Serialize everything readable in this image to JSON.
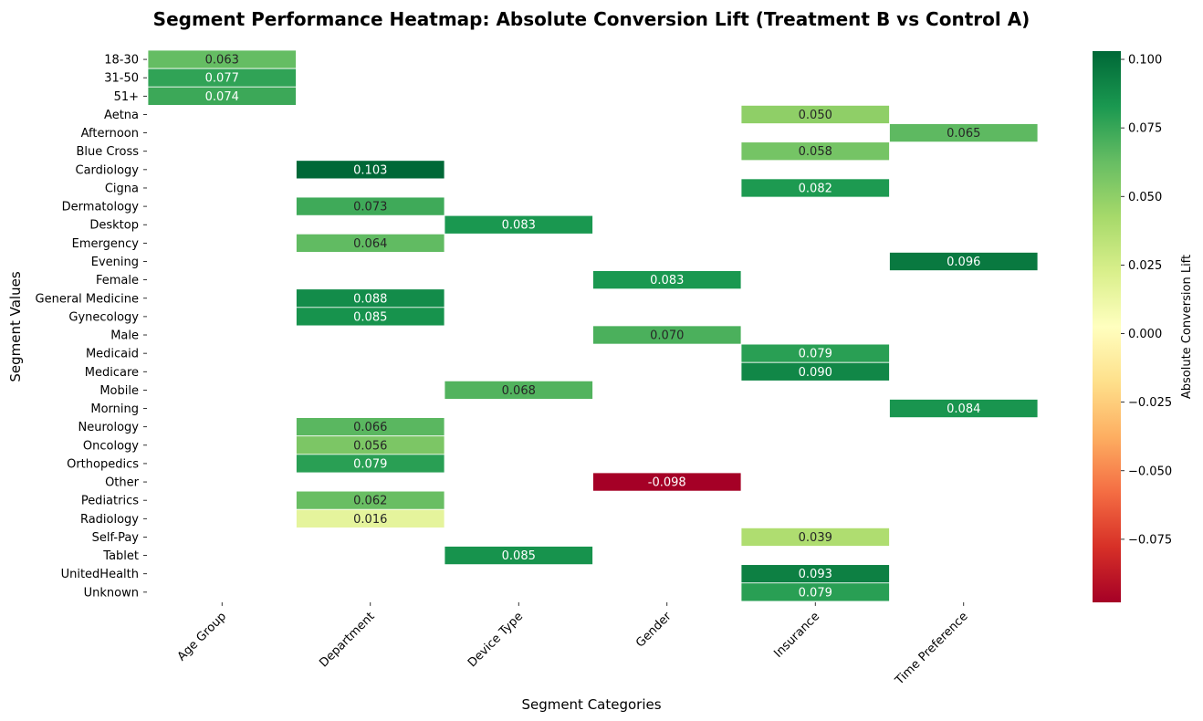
{
  "chart_data": {
    "type": "heatmap",
    "title": "Segment Performance Heatmap: Absolute Conversion Lift (Treatment B vs Control A)",
    "xlabel": "Segment Categories",
    "ylabel": "Segment Values",
    "colorbar_label": "Absolute Conversion Lift",
    "colormap": "RdYlGn",
    "vmin": -0.098,
    "vmax": 0.103,
    "colorbar_ticks": [
      "0.100",
      "0.075",
      "0.050",
      "0.025",
      "0.000",
      "−0.025",
      "−0.050",
      "−0.075"
    ],
    "colorbar_tick_values": [
      0.1,
      0.075,
      0.05,
      0.025,
      0.0,
      -0.025,
      -0.05,
      -0.075
    ],
    "columns": [
      "Age Group",
      "Department",
      "Device Type",
      "Gender",
      "Insurance",
      "Time Preference"
    ],
    "rows": [
      "18-30",
      "31-50",
      "51+",
      "Aetna",
      "Afternoon",
      "Blue Cross",
      "Cardiology",
      "Cigna",
      "Dermatology",
      "Desktop",
      "Emergency",
      "Evening",
      "Female",
      "General Medicine",
      "Gynecology",
      "Male",
      "Medicaid",
      "Medicare",
      "Mobile",
      "Morning",
      "Neurology",
      "Oncology",
      "Orthopedics",
      "Other",
      "Pediatrics",
      "Radiology",
      "Self-Pay",
      "Tablet",
      "UnitedHealth",
      "Unknown"
    ],
    "cells": [
      {
        "row": "18-30",
        "col": "Age Group",
        "value": 0.063,
        "label": "0.063"
      },
      {
        "row": "31-50",
        "col": "Age Group",
        "value": 0.077,
        "label": "0.077"
      },
      {
        "row": "51+",
        "col": "Age Group",
        "value": 0.074,
        "label": "0.074"
      },
      {
        "row": "Aetna",
        "col": "Insurance",
        "value": 0.05,
        "label": "0.050"
      },
      {
        "row": "Afternoon",
        "col": "Time Preference",
        "value": 0.065,
        "label": "0.065"
      },
      {
        "row": "Blue Cross",
        "col": "Insurance",
        "value": 0.058,
        "label": "0.058"
      },
      {
        "row": "Cardiology",
        "col": "Department",
        "value": 0.103,
        "label": "0.103"
      },
      {
        "row": "Cigna",
        "col": "Insurance",
        "value": 0.082,
        "label": "0.082"
      },
      {
        "row": "Dermatology",
        "col": "Department",
        "value": 0.073,
        "label": "0.073"
      },
      {
        "row": "Desktop",
        "col": "Device Type",
        "value": 0.083,
        "label": "0.083"
      },
      {
        "row": "Emergency",
        "col": "Department",
        "value": 0.064,
        "label": "0.064"
      },
      {
        "row": "Evening",
        "col": "Time Preference",
        "value": 0.096,
        "label": "0.096"
      },
      {
        "row": "Female",
        "col": "Gender",
        "value": 0.083,
        "label": "0.083"
      },
      {
        "row": "General Medicine",
        "col": "Department",
        "value": 0.088,
        "label": "0.088"
      },
      {
        "row": "Gynecology",
        "col": "Department",
        "value": 0.085,
        "label": "0.085"
      },
      {
        "row": "Male",
        "col": "Gender",
        "value": 0.07,
        "label": "0.070"
      },
      {
        "row": "Medicaid",
        "col": "Insurance",
        "value": 0.079,
        "label": "0.079"
      },
      {
        "row": "Medicare",
        "col": "Insurance",
        "value": 0.09,
        "label": "0.090"
      },
      {
        "row": "Mobile",
        "col": "Device Type",
        "value": 0.068,
        "label": "0.068"
      },
      {
        "row": "Morning",
        "col": "Time Preference",
        "value": 0.084,
        "label": "0.084"
      },
      {
        "row": "Neurology",
        "col": "Department",
        "value": 0.066,
        "label": "0.066"
      },
      {
        "row": "Oncology",
        "col": "Department",
        "value": 0.056,
        "label": "0.056"
      },
      {
        "row": "Orthopedics",
        "col": "Department",
        "value": 0.079,
        "label": "0.079"
      },
      {
        "row": "Other",
        "col": "Gender",
        "value": -0.098,
        "label": "-0.098"
      },
      {
        "row": "Pediatrics",
        "col": "Department",
        "value": 0.062,
        "label": "0.062"
      },
      {
        "row": "Radiology",
        "col": "Department",
        "value": 0.016,
        "label": "0.016"
      },
      {
        "row": "Self-Pay",
        "col": "Insurance",
        "value": 0.039,
        "label": "0.039"
      },
      {
        "row": "Tablet",
        "col": "Device Type",
        "value": 0.085,
        "label": "0.085"
      },
      {
        "row": "UnitedHealth",
        "col": "Insurance",
        "value": 0.093,
        "label": "0.093"
      },
      {
        "row": "Unknown",
        "col": "Insurance",
        "value": 0.079,
        "label": "0.079"
      }
    ],
    "grid": false,
    "legend": "colorbar-right"
  }
}
